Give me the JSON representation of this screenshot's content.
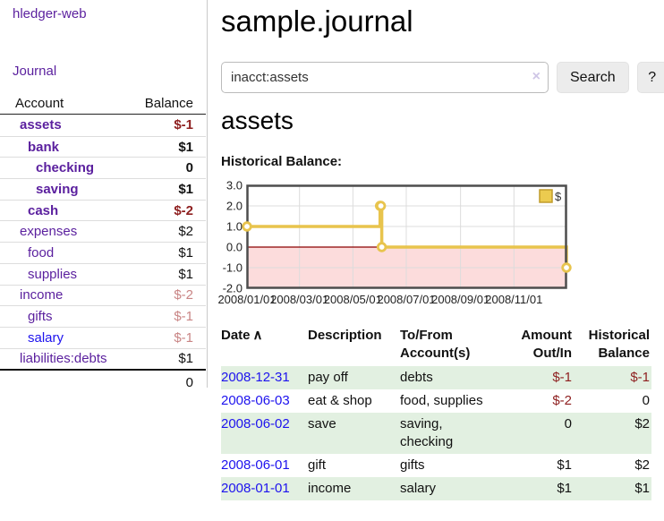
{
  "sidebar": {
    "brand": "hledger-web",
    "nav_journal": "Journal",
    "col_account": "Account",
    "col_balance": "Balance",
    "accounts": [
      {
        "label": "assets",
        "indent": 0,
        "bold": true,
        "neg": "strong",
        "blue": false,
        "balance": "$-1"
      },
      {
        "label": "bank",
        "indent": 1,
        "bold": true,
        "neg": null,
        "blue": false,
        "balance": "$1"
      },
      {
        "label": "checking",
        "indent": 2,
        "bold": true,
        "neg": null,
        "blue": false,
        "balance": "0"
      },
      {
        "label": "saving",
        "indent": 2,
        "bold": true,
        "neg": null,
        "blue": false,
        "balance": "$1"
      },
      {
        "label": "cash",
        "indent": 1,
        "bold": true,
        "neg": "strong",
        "blue": false,
        "balance": "$-2"
      },
      {
        "label": "expenses",
        "indent": 0,
        "bold": false,
        "neg": null,
        "blue": false,
        "balance": "$2"
      },
      {
        "label": "food",
        "indent": 1,
        "bold": false,
        "neg": null,
        "blue": false,
        "balance": "$1"
      },
      {
        "label": "supplies",
        "indent": 1,
        "bold": false,
        "neg": null,
        "blue": false,
        "balance": "$1"
      },
      {
        "label": "income",
        "indent": 0,
        "bold": false,
        "neg": "soft",
        "blue": false,
        "balance": "$-2"
      },
      {
        "label": "gifts",
        "indent": 1,
        "bold": false,
        "neg": "soft",
        "blue": false,
        "balance": "$-1"
      },
      {
        "label": "salary",
        "indent": 1,
        "bold": false,
        "neg": "soft",
        "blue": true,
        "balance": "$-1"
      },
      {
        "label": "liabilities:debts",
        "indent": 0,
        "bold": false,
        "neg": null,
        "blue": false,
        "balance": "$1"
      }
    ],
    "total": "0"
  },
  "header": {
    "title": "sample.journal"
  },
  "search": {
    "value": "inacct:assets",
    "clear_icon": "×",
    "button": "Search",
    "help": "?"
  },
  "account_page": {
    "heading": "assets",
    "chart_label": "Historical Balance:"
  },
  "chart_data": {
    "type": "line",
    "step": true,
    "title": "Historical Balance:",
    "series": [
      {
        "name": "$",
        "x": [
          "2008-01-01",
          "2008-06-01",
          "2008-06-02",
          "2008-06-03",
          "2008-12-31"
        ],
        "values": [
          1,
          2,
          2,
          0,
          -1
        ]
      }
    ],
    "xrange": [
      "2008-01-01",
      "2008-12-31"
    ],
    "ylim": [
      -2,
      3
    ],
    "ytick_labels": [
      "3.0",
      "2.0",
      "1.0",
      "0.0",
      "-1.0",
      "-2.0"
    ],
    "yticks": [
      3,
      2,
      1,
      0,
      -1,
      -2
    ],
    "xticks": [
      "2008-01-01",
      "2008-03-01",
      "2008-05-01",
      "2008-07-01",
      "2008-09-01",
      "2008-11-01"
    ],
    "xtick_labels": [
      "2008/01/01",
      "2008/03/01",
      "2008/05/01",
      "2008/07/01",
      "2008/09/01",
      "2008/11/01"
    ],
    "legend": {
      "label": "$",
      "position": "top-right"
    },
    "grid": true,
    "colors": {
      "line": "#e8c44d",
      "marker_fill": "#ffffff",
      "legend_fill": "#eccb4f",
      "legend_border": "#c09c2c",
      "negative_region": "#fcdcdc",
      "zero_line": "#8b0000",
      "grid": "#dcdcdc",
      "border": "#4d4d4d",
      "tick_text": "#222222"
    }
  },
  "register": {
    "headers": {
      "date": [
        "Date"
      ],
      "description": [
        "Description"
      ],
      "tofrom": [
        "To/From",
        "Account(s)"
      ],
      "amount": [
        "Amount",
        "Out/In"
      ],
      "balance": [
        "Historical",
        "Balance"
      ]
    },
    "sort_icon": "∧",
    "rows": [
      {
        "date": "2008-12-31",
        "description": "pay off",
        "accounts": "debts",
        "amount": "$-1",
        "amount_neg": true,
        "balance": "$-1",
        "balance_neg": true
      },
      {
        "date": "2008-06-03",
        "description": "eat & shop",
        "accounts": "food, supplies",
        "amount": "$-2",
        "amount_neg": true,
        "balance": "0",
        "balance_neg": false
      },
      {
        "date": "2008-06-02",
        "description": "save",
        "accounts": "saving,\nchecking",
        "amount": "0",
        "amount_neg": false,
        "balance": "$2",
        "balance_neg": false
      },
      {
        "date": "2008-06-01",
        "description": "gift",
        "accounts": "gifts",
        "amount": "$1",
        "amount_neg": false,
        "balance": "$2",
        "balance_neg": false
      },
      {
        "date": "2008-01-01",
        "description": "income",
        "accounts": "salary",
        "amount": "$1",
        "amount_neg": false,
        "balance": "$1",
        "balance_neg": false
      }
    ]
  }
}
